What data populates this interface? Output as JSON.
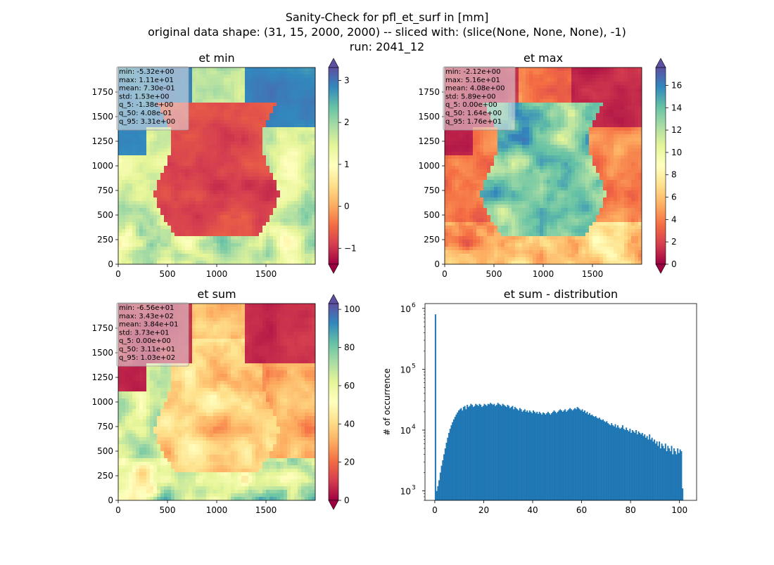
{
  "figure": {
    "suptitle_line1": "Sanity-Check for pfl_et_surf in [mm]",
    "suptitle_line2": "original data shape: (31, 15, 2000, 2000) -- sliced with: (slice(None, None, None), -1)",
    "suptitle_line3": "run: 2041_12"
  },
  "colormap": {
    "name": "Spectral",
    "stops": [
      "#9e0142",
      "#d53e4f",
      "#f46d43",
      "#fdae61",
      "#fee08b",
      "#ffffbf",
      "#e6f598",
      "#abdda4",
      "#66c2a5",
      "#3288bd",
      "#5e4fa2"
    ]
  },
  "panels": [
    {
      "title": "et min",
      "xticks": [
        "0",
        "500",
        "1000",
        "1500"
      ],
      "yticks": [
        "0",
        "250",
        "500",
        "750",
        "1000",
        "1250",
        "1500",
        "1750"
      ],
      "stats": [
        "min: -5.32e+00",
        "max: 1.11e+01",
        "mean: 7.30e-01",
        "std: 1.53e+00",
        "q_5: -1.38e+00",
        "q_50: 4.08e-01",
        "q_95: 3.31e+00"
      ],
      "colorbar": {
        "vmin": -1.38,
        "vmax": 3.31,
        "ticks": [
          "−1",
          "0",
          "1",
          "2",
          "3"
        ],
        "tick_values": [
          -1,
          0,
          1,
          2,
          3
        ]
      }
    },
    {
      "title": "et max",
      "xticks": [
        "0",
        "500",
        "1000",
        "1500"
      ],
      "yticks": [
        "0",
        "250",
        "500",
        "750",
        "1000",
        "1250",
        "1500",
        "1750"
      ],
      "stats": [
        "min: -2.12e+00",
        "max: 5.16e+01",
        "mean: 4.08e+00",
        "std: 5.89e+00",
        "q_5: 0.00e+00",
        "q_50: 1.64e+00",
        "q_95: 1.76e+01"
      ],
      "colorbar": {
        "vmin": 0,
        "vmax": 17.6,
        "ticks": [
          "0",
          "2",
          "4",
          "6",
          "8",
          "10",
          "12",
          "14",
          "16"
        ],
        "tick_values": [
          0,
          2,
          4,
          6,
          8,
          10,
          12,
          14,
          16
        ]
      }
    },
    {
      "title": "et sum",
      "xticks": [
        "0",
        "500",
        "1000",
        "1500"
      ],
      "yticks": [
        "0",
        "250",
        "500",
        "750",
        "1000",
        "1250",
        "1500",
        "1750"
      ],
      "stats": [
        "min: -6.56e+01",
        "max: 3.43e+02",
        "mean: 3.84e+01",
        "std: 3.73e+01",
        "q_5: 0.00e+00",
        "q_50: 3.11e+01",
        "q_95: 1.03e+02"
      ],
      "colorbar": {
        "vmin": 0,
        "vmax": 103,
        "ticks": [
          "0",
          "20",
          "40",
          "60",
          "80",
          "100"
        ],
        "tick_values": [
          0,
          20,
          40,
          60,
          80,
          100
        ]
      }
    }
  ],
  "chart_data": [
    {
      "type": "heatmap",
      "title": "et min",
      "xlim": [
        0,
        2000
      ],
      "ylim": [
        0,
        2000
      ],
      "colorbar_range": [
        -1.38,
        3.31
      ]
    },
    {
      "type": "heatmap",
      "title": "et max",
      "xlim": [
        0,
        2000
      ],
      "ylim": [
        0,
        2000
      ],
      "colorbar_range": [
        0,
        17.6
      ]
    },
    {
      "type": "heatmap",
      "title": "et sum",
      "xlim": [
        0,
        2000
      ],
      "ylim": [
        0,
        2000
      ],
      "colorbar_range": [
        0,
        103
      ]
    },
    {
      "type": "bar",
      "title": "et sum - distribution",
      "xlabel": "",
      "ylabel": "# of occurrence",
      "yscale": "log",
      "xlim": [
        -4,
        107
      ],
      "ylim": [
        700,
        1200000
      ],
      "xticks": [
        "0",
        "20",
        "40",
        "60",
        "80",
        "100"
      ],
      "xtick_values": [
        0,
        20,
        40,
        60,
        80,
        100
      ],
      "ytick_labels": [
        "10",
        "10",
        "10",
        "10"
      ],
      "ytick_exponents": [
        "3",
        "4",
        "5",
        "6"
      ],
      "ytick_values": [
        1000,
        10000,
        100000,
        1000000
      ],
      "bin_start": 0,
      "bin_width": 0.5,
      "bar_color": "#1f77b4",
      "counts": [
        800000,
        1000,
        1200,
        1500,
        2000,
        2600,
        3200,
        4000,
        5000,
        6200,
        7500,
        9000,
        10500,
        12000,
        13500,
        15000,
        16500,
        18000,
        19500,
        21000,
        22000,
        23000,
        21000,
        24000,
        25000,
        22000,
        26000,
        24000,
        25000,
        27000,
        26000,
        24000,
        25000,
        27000,
        26000,
        25000,
        27000,
        26000,
        24000,
        25000,
        27000,
        26000,
        25000,
        27000,
        26500,
        28000,
        27000,
        26000,
        27000,
        25000,
        26000,
        28000,
        27000,
        26000,
        25000,
        27000,
        26000,
        25000,
        24000,
        26000,
        25000,
        23000,
        24000,
        25000,
        22000,
        24000,
        23000,
        22000,
        21000,
        23000,
        22000,
        20000,
        21000,
        22000,
        20000,
        21000,
        19500,
        21000,
        20000,
        19000,
        21000,
        20000,
        19000,
        20000,
        18500,
        20000,
        19000,
        18000,
        19500,
        19000,
        18000,
        19000,
        20000,
        19000,
        18000,
        19000,
        20000,
        21000,
        20000,
        19000,
        20000,
        21000,
        22000,
        21000,
        20000,
        21000,
        22000,
        20000,
        21000,
        22000,
        23000,
        22000,
        21000,
        22000,
        23000,
        22000,
        24000,
        23000,
        22000,
        21000,
        22000,
        20000,
        21000,
        19000,
        20000,
        18000,
        19000,
        17500,
        18000,
        17000,
        16500,
        17000,
        16000,
        15500,
        16000,
        15000,
        14500,
        15000,
        14000,
        13500,
        14000,
        13000,
        12500,
        12000,
        13000,
        12000,
        11500,
        12500,
        11000,
        12000,
        11000,
        10500,
        11000,
        12000,
        10500,
        10000,
        11000,
        10000,
        9500,
        10500,
        9000,
        10000,
        9500,
        9000,
        10000,
        8500,
        9500,
        9000,
        8500,
        9000,
        8000,
        8500,
        7500,
        8000,
        7000,
        8500,
        7000,
        7500,
        6500,
        7000,
        6000,
        6500,
        5500,
        6500,
        5000,
        6000,
        5500,
        5000,
        6000,
        4500,
        5500,
        5000,
        4500,
        5500,
        4000,
        5000,
        4500,
        4000,
        5000,
        4200,
        4800,
        4500,
        1100
      ]
    }
  ]
}
